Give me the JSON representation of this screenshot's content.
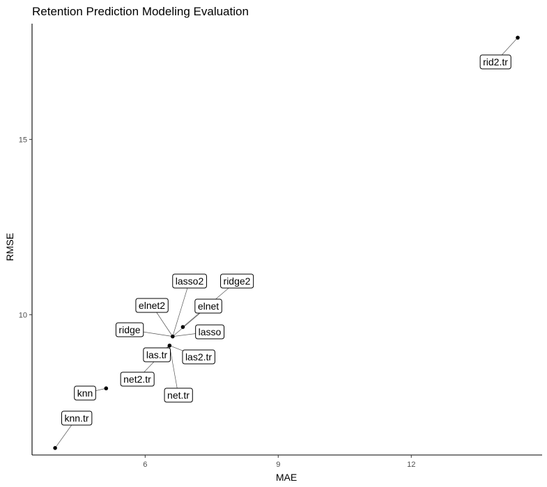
{
  "chart_data": {
    "type": "scatter",
    "title": "Retention Prediction Modeling Evaluation",
    "xlabel": "MAE",
    "ylabel": "RMSE",
    "xlim": [
      3.45,
      14.95
    ],
    "ylim": [
      6.0,
      18.3
    ],
    "x_ticks": [
      6,
      9,
      12
    ],
    "y_ticks": [
      10,
      15
    ],
    "grid": false,
    "legend": "none",
    "point_color": "#000000",
    "points": [
      {
        "label": "rid2.tr",
        "x": 14.4,
        "y": 17.9
      },
      {
        "label": "ridge2",
        "x": 6.85,
        "y": 9.65
      },
      {
        "label": "lasso2",
        "x": 6.62,
        "y": 9.38
      },
      {
        "label": "elnet",
        "x": 6.62,
        "y": 9.38
      },
      {
        "label": "elnet2",
        "x": 6.62,
        "y": 9.38
      },
      {
        "label": "lasso",
        "x": 6.62,
        "y": 9.38
      },
      {
        "label": "ridge",
        "x": 6.62,
        "y": 9.38
      },
      {
        "label": "las.tr",
        "x": 6.55,
        "y": 9.12
      },
      {
        "label": "las2.tr",
        "x": 6.55,
        "y": 9.12
      },
      {
        "label": "net.tr",
        "x": 6.55,
        "y": 9.12
      },
      {
        "label": "net2.tr",
        "x": 6.55,
        "y": 9.12
      },
      {
        "label": "knn",
        "x": 5.12,
        "y": 7.9
      },
      {
        "label": "knn.tr",
        "x": 3.97,
        "y": 6.2
      }
    ]
  }
}
